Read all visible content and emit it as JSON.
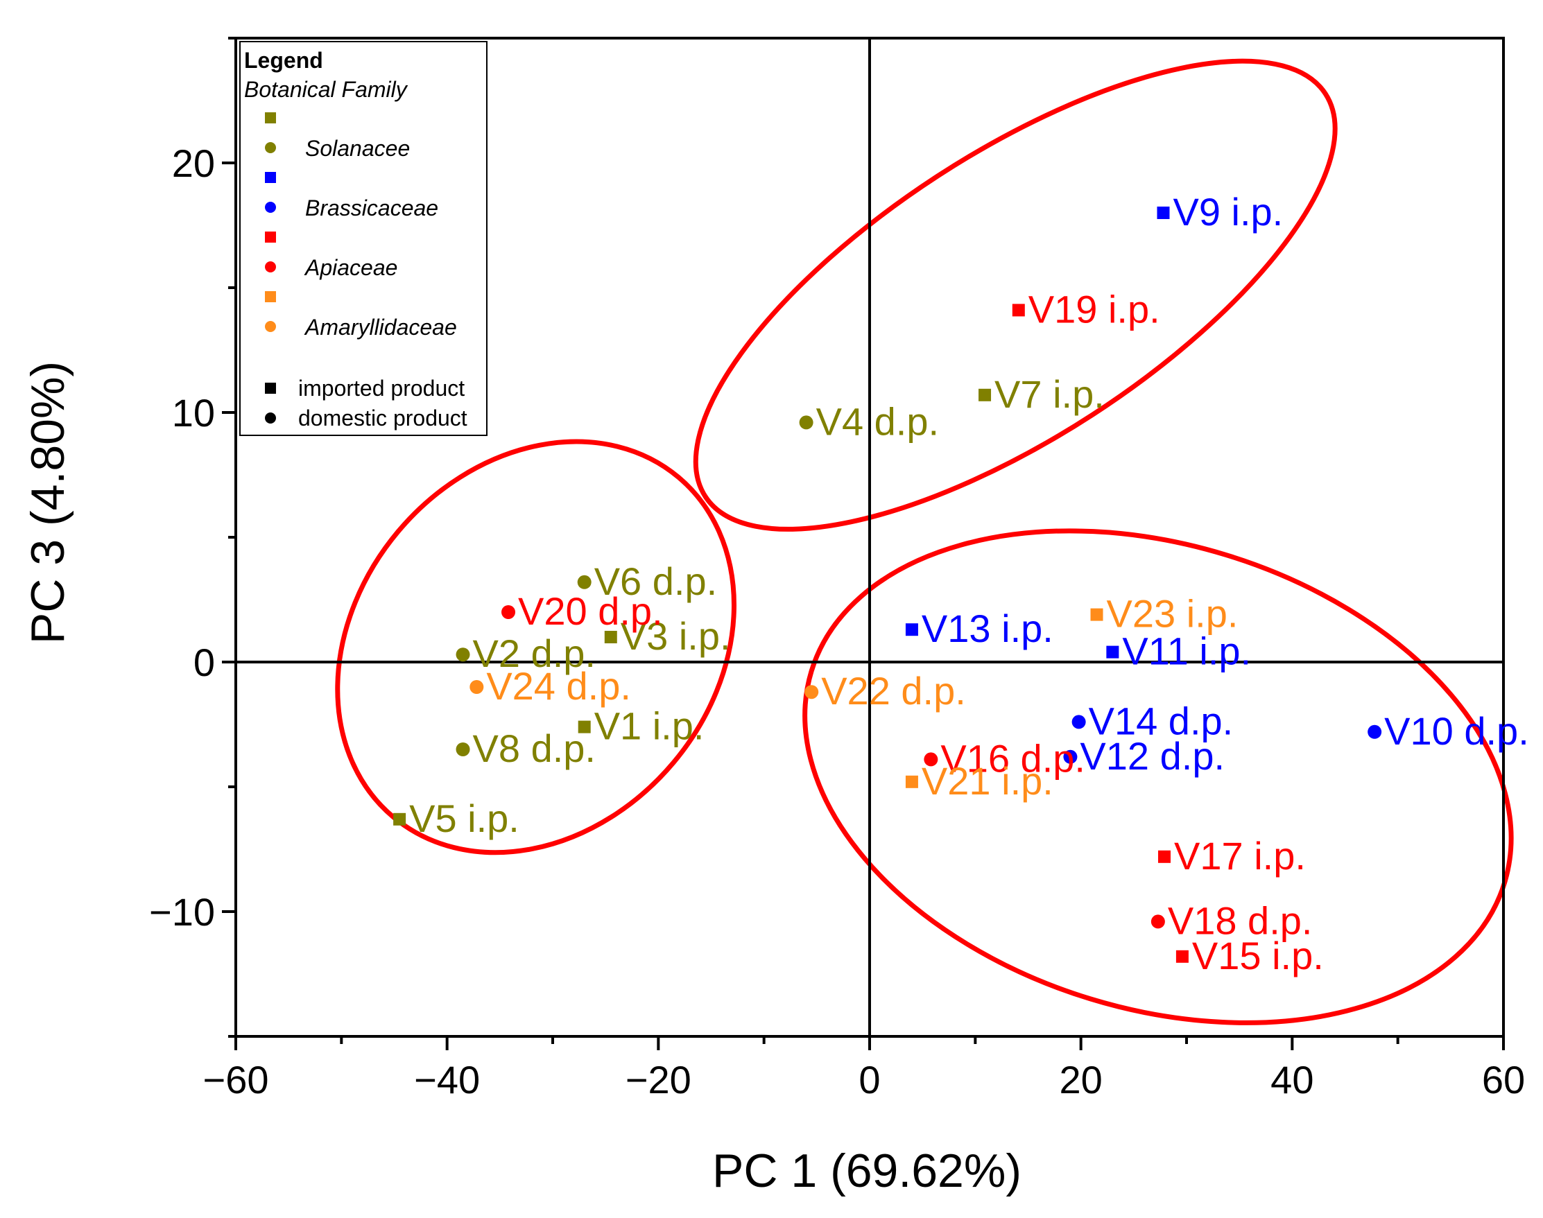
{
  "chart_data": {
    "type": "scatter",
    "title": "",
    "xlabel": "PC 1 (69.62%)",
    "ylabel": "PC 3 (4.80%)",
    "xlim": [
      -60,
      60
    ],
    "ylim": [
      -15,
      25
    ],
    "xticks": [
      -60,
      -40,
      -20,
      0,
      20,
      40,
      60
    ],
    "yticks": [
      -10,
      0,
      10,
      20
    ],
    "tick_labels": {
      "x": [
        "−60",
        "−40",
        "−20",
        "0",
        "20",
        "40",
        "60"
      ],
      "y": [
        "−10",
        "0",
        "10",
        "20"
      ]
    },
    "grid": false,
    "reference_lines": {
      "x": 0,
      "y": 0
    },
    "families": [
      {
        "name": "Solanacee",
        "color": "#808000"
      },
      {
        "name": "Brassicaceae",
        "color": "#0000FF"
      },
      {
        "name": "Apiaceae",
        "color": "#FF0000"
      },
      {
        "name": "Amaryllidaceae",
        "color": "#FF8C1A"
      }
    ],
    "legend": {
      "title": "Legend",
      "subtitle": "Botanical Family",
      "position": "top-left",
      "product_types": [
        {
          "marker": "square",
          "label": "imported product"
        },
        {
          "marker": "circle",
          "label": "domestic product"
        }
      ]
    },
    "points": [
      {
        "label": "V1 i.p.",
        "x": -27,
        "y": -2.6,
        "family": "Solanacee",
        "marker": "square"
      },
      {
        "label": "V2 d.p.",
        "x": -38.5,
        "y": 0.3,
        "family": "Solanacee",
        "marker": "circle"
      },
      {
        "label": "V3 i.p.",
        "x": -24.5,
        "y": 1.0,
        "family": "Solanacee",
        "marker": "square"
      },
      {
        "label": "V4 d.p.",
        "x": -6.0,
        "y": 9.6,
        "family": "Solanacee",
        "marker": "circle"
      },
      {
        "label": "V5 i.p.",
        "x": -44.5,
        "y": -6.3,
        "family": "Solanacee",
        "marker": "square"
      },
      {
        "label": "V6 d.p.",
        "x": -27,
        "y": 3.2,
        "family": "Solanacee",
        "marker": "circle"
      },
      {
        "label": "V7 i.p.",
        "x": 10.9,
        "y": 10.7,
        "family": "Solanacee",
        "marker": "square"
      },
      {
        "label": "V8 d.p.",
        "x": -38.5,
        "y": -3.5,
        "family": "Solanacee",
        "marker": "circle"
      },
      {
        "label": "V9 i.p.",
        "x": 27.8,
        "y": 18.0,
        "family": "Brassicaceae",
        "marker": "square"
      },
      {
        "label": "V10 d.p.",
        "x": 47.8,
        "y": -2.8,
        "family": "Brassicaceae",
        "marker": "circle"
      },
      {
        "label": "V11 i.p.",
        "x": 23.0,
        "y": 0.4,
        "family": "Brassicaceae",
        "marker": "square"
      },
      {
        "label": "V12 d.p.",
        "x": 19.0,
        "y": -3.8,
        "family": "Brassicaceae",
        "marker": "circle"
      },
      {
        "label": "V13 i.p.",
        "x": 4.0,
        "y": 1.3,
        "family": "Brassicaceae",
        "marker": "square"
      },
      {
        "label": "V14 d.p.",
        "x": 19.8,
        "y": -2.4,
        "family": "Brassicaceae",
        "marker": "circle"
      },
      {
        "label": "V15 i.p.",
        "x": 29.6,
        "y": -11.8,
        "family": "Apiaceae",
        "marker": "square"
      },
      {
        "label": "V16 d.p.",
        "x": 5.8,
        "y": -3.9,
        "family": "Apiaceae",
        "marker": "circle"
      },
      {
        "label": "V17 i.p.",
        "x": 27.9,
        "y": -7.8,
        "family": "Apiaceae",
        "marker": "square"
      },
      {
        "label": "V18 d.p.",
        "x": 27.3,
        "y": -10.4,
        "family": "Apiaceae",
        "marker": "circle"
      },
      {
        "label": "V19 i.p.",
        "x": 14.1,
        "y": 14.1,
        "family": "Apiaceae",
        "marker": "square"
      },
      {
        "label": "V20 d.p.",
        "x": -34.2,
        "y": 2.0,
        "family": "Apiaceae",
        "marker": "circle"
      },
      {
        "label": "V21 i.p.",
        "x": 4.0,
        "y": -4.8,
        "family": "Amaryllidaceae",
        "marker": "square"
      },
      {
        "label": "V22 d.p.",
        "x": -5.5,
        "y": -1.2,
        "family": "Amaryllidaceae",
        "marker": "circle"
      },
      {
        "label": "V23 i.p.",
        "x": 21.5,
        "y": 1.9,
        "family": "Amaryllidaceae",
        "marker": "square"
      },
      {
        "label": "V24 d.p.",
        "x": -37.2,
        "y": -1.0,
        "family": "Amaryllidaceae",
        "marker": "circle"
      }
    ],
    "clusters": [
      {
        "name": "cluster-upper",
        "center": [
          13.8,
          14.7
        ],
        "radii_data": [
          35.0,
          5.7
        ],
        "angle_deg": -33,
        "color": "#FF0000"
      },
      {
        "name": "cluster-left",
        "center": [
          -31.6,
          0.6
        ],
        "radii_data": [
          21.0,
          7.2
        ],
        "angle_deg": -50,
        "color": "#FF0000"
      },
      {
        "name": "cluster-right",
        "center": [
          27.3,
          -4.6
        ],
        "radii_data": [
          34.3,
          9.3
        ],
        "angle_deg": 17,
        "color": "#FF0000"
      }
    ]
  }
}
